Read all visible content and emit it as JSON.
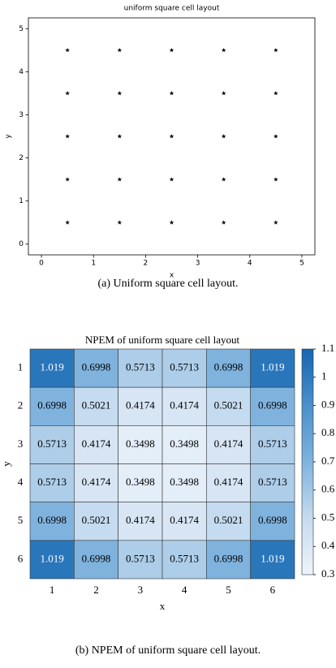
{
  "chart_data": [
    {
      "type": "scatter",
      "title": "uniform square cell layout",
      "xlabel": "x",
      "ylabel": "y",
      "x": [
        0.5,
        1.5,
        2.5,
        3.5,
        4.5,
        0.5,
        1.5,
        2.5,
        3.5,
        4.5,
        0.5,
        1.5,
        2.5,
        3.5,
        4.5,
        0.5,
        1.5,
        2.5,
        3.5,
        4.5,
        0.5,
        1.5,
        2.5,
        3.5,
        4.5
      ],
      "y": [
        0.5,
        0.5,
        0.5,
        0.5,
        0.5,
        1.5,
        1.5,
        1.5,
        1.5,
        1.5,
        2.5,
        2.5,
        2.5,
        2.5,
        2.5,
        3.5,
        3.5,
        3.5,
        3.5,
        3.5,
        4.5,
        4.5,
        4.5,
        4.5,
        4.5
      ],
      "color": "#000000",
      "marker": "star",
      "xlim": [
        -0.25,
        5.25
      ],
      "ylim": [
        -0.25,
        5.25
      ],
      "xticks": [
        0,
        1,
        2,
        3,
        4,
        5
      ],
      "yticks": [
        0,
        1,
        2,
        3,
        4,
        5
      ],
      "caption": "(a) Uniform square cell layout."
    },
    {
      "type": "heatmap",
      "title": "NPEM of uniform square cell layout",
      "xlabel": "x",
      "ylabel": "y",
      "x_categories": [
        "1",
        "2",
        "3",
        "4",
        "5",
        "6"
      ],
      "y_categories": [
        "1",
        "2",
        "3",
        "4",
        "5",
        "6"
      ],
      "values": [
        [
          1.019,
          0.6998,
          0.5713,
          0.5713,
          0.6998,
          1.019
        ],
        [
          0.6998,
          0.5021,
          0.4174,
          0.4174,
          0.5021,
          0.6998
        ],
        [
          0.5713,
          0.4174,
          0.3498,
          0.3498,
          0.4174,
          0.5713
        ],
        [
          0.5713,
          0.4174,
          0.3498,
          0.3498,
          0.4174,
          0.5713
        ],
        [
          0.6998,
          0.5021,
          0.4174,
          0.4174,
          0.5021,
          0.6998
        ],
        [
          1.019,
          0.6998,
          0.5713,
          0.5713,
          0.6998,
          1.019
        ]
      ],
      "colormap": [
        "#eef4fb",
        "#c6dbef",
        "#7fb3de",
        "#4a90cc",
        "#1565b0"
      ],
      "clim": [
        0.3,
        1.1
      ],
      "cticks": [
        0.3,
        0.4,
        0.5,
        0.6,
        0.7,
        0.8,
        0.9,
        1,
        1.1
      ],
      "caption": "(b) NPEM of uniform square cell layout."
    }
  ]
}
